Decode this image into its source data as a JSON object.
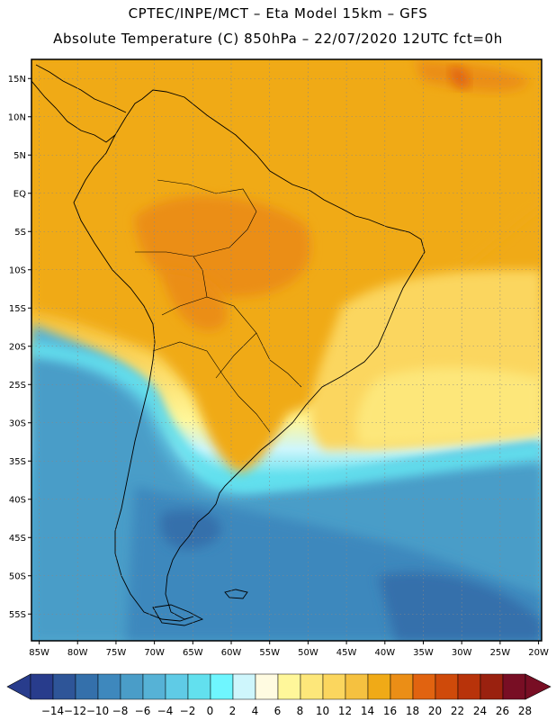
{
  "header": {
    "line1": "CPTEC/INPE/MCT –  Eta Model 15km – GFS",
    "line2": "Absolute Temperature (C) 850hPa – 22/07/2020 12UTC fct=0h"
  },
  "map": {
    "lat_ticks": [
      {
        "label": "15N",
        "lat": 15
      },
      {
        "label": "10N",
        "lat": 10
      },
      {
        "label": "5N",
        "lat": 5
      },
      {
        "label": "EQ",
        "lat": 0
      },
      {
        "label": "5S",
        "lat": -5
      },
      {
        "label": "10S",
        "lat": -10
      },
      {
        "label": "15S",
        "lat": -15
      },
      {
        "label": "20S",
        "lat": -20
      },
      {
        "label": "25S",
        "lat": -25
      },
      {
        "label": "30S",
        "lat": -30
      },
      {
        "label": "35S",
        "lat": -35
      },
      {
        "label": "40S",
        "lat": -40
      },
      {
        "label": "45S",
        "lat": -45
      },
      {
        "label": "50S",
        "lat": -50
      },
      {
        "label": "55S",
        "lat": -55
      }
    ],
    "lon_ticks": [
      {
        "label": "85W",
        "lon": -85
      },
      {
        "label": "80W",
        "lon": -80
      },
      {
        "label": "75W",
        "lon": -75
      },
      {
        "label": "70W",
        "lon": -70
      },
      {
        "label": "65W",
        "lon": -65
      },
      {
        "label": "60W",
        "lon": -60
      },
      {
        "label": "55W",
        "lon": -55
      },
      {
        "label": "50W",
        "lon": -50
      },
      {
        "label": "45W",
        "lon": -45
      },
      {
        "label": "40W",
        "lon": -40
      },
      {
        "label": "35W",
        "lon": -35
      },
      {
        "label": "30W",
        "lon": -30
      },
      {
        "label": "25W",
        "lon": -25
      },
      {
        "label": "20W",
        "lon": -20
      }
    ],
    "gridlines": "dotted"
  },
  "colorbar": {
    "labels": [
      "-14",
      "-12",
      "-10",
      "-8",
      "-6",
      "-4",
      "-2",
      "0",
      "2",
      "4",
      "6",
      "8",
      "10",
      "12",
      "14",
      "16",
      "18",
      "20",
      "22",
      "24",
      "26",
      "28"
    ],
    "low_end_color": "#283c8c",
    "high_end_color": "#780e24",
    "colors": [
      "#283c8c",
      "#2e5598",
      "#3470ab",
      "#3e88bd",
      "#4a9dc8",
      "#56b2d6",
      "#5fcbe6",
      "#62e0ee",
      "#6ff6ff",
      "#cef6fc",
      "#fffbe1",
      "#fff79a",
      "#fde77a",
      "#fbd65e",
      "#f5c140",
      "#f0aa17",
      "#eb8e16",
      "#e16310",
      "#cf4a0a",
      "#b8330a",
      "#9a210f",
      "#780e24"
    ]
  },
  "palette": {
    "warm_orange": "#f0aa17",
    "hot_orange": "#eb8e16",
    "light_yellow": "#fde77a",
    "cold_cyan": "#5fcbe6",
    "cold_blue": "#4a9dc8",
    "frame": "#000000"
  }
}
